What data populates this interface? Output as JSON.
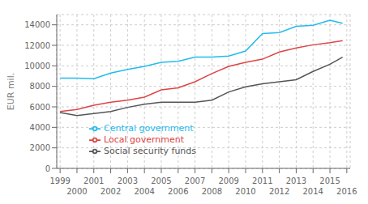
{
  "chart_data": {
    "type": "line",
    "ylabel": "EUR mil.",
    "x": [
      1999,
      2000,
      2001,
      2002,
      2003,
      2004,
      2005,
      2006,
      2007,
      2008,
      2009,
      2010,
      2011,
      2012,
      2013,
      2014,
      2015,
      2015.75
    ],
    "series": [
      {
        "name": "Central government",
        "color": "#22bbee",
        "values": [
          8800,
          8800,
          8750,
          9300,
          9650,
          9950,
          10350,
          10450,
          10850,
          10850,
          10950,
          11450,
          13150,
          13250,
          13850,
          13950,
          14450,
          14150
        ]
      },
      {
        "name": "Local government",
        "color": "#dd4444",
        "values": [
          5550,
          5750,
          6150,
          6450,
          6650,
          6950,
          7650,
          7850,
          8450,
          9250,
          9950,
          10350,
          10650,
          11350,
          11750,
          12050,
          12250,
          12450
        ]
      },
      {
        "name": "Social security funds",
        "color": "#555555",
        "values": [
          5450,
          5150,
          5350,
          5550,
          5950,
          6250,
          6450,
          6450,
          6450,
          6650,
          7450,
          7950,
          8250,
          8450,
          8650,
          9450,
          10150,
          10850
        ]
      }
    ],
    "xlim": [
      1998.8,
      2016.2
    ],
    "xticks": [
      1999,
      2000,
      2001,
      2002,
      2003,
      2004,
      2005,
      2006,
      2007,
      2008,
      2009,
      2010,
      2011,
      2012,
      2013,
      2014,
      2015,
      2016
    ],
    "ylim": [
      0,
      15000
    ],
    "yticks": [
      0,
      2000,
      4000,
      6000,
      8000,
      10000,
      12000,
      14000
    ],
    "grid": true,
    "legend": "lower left"
  }
}
